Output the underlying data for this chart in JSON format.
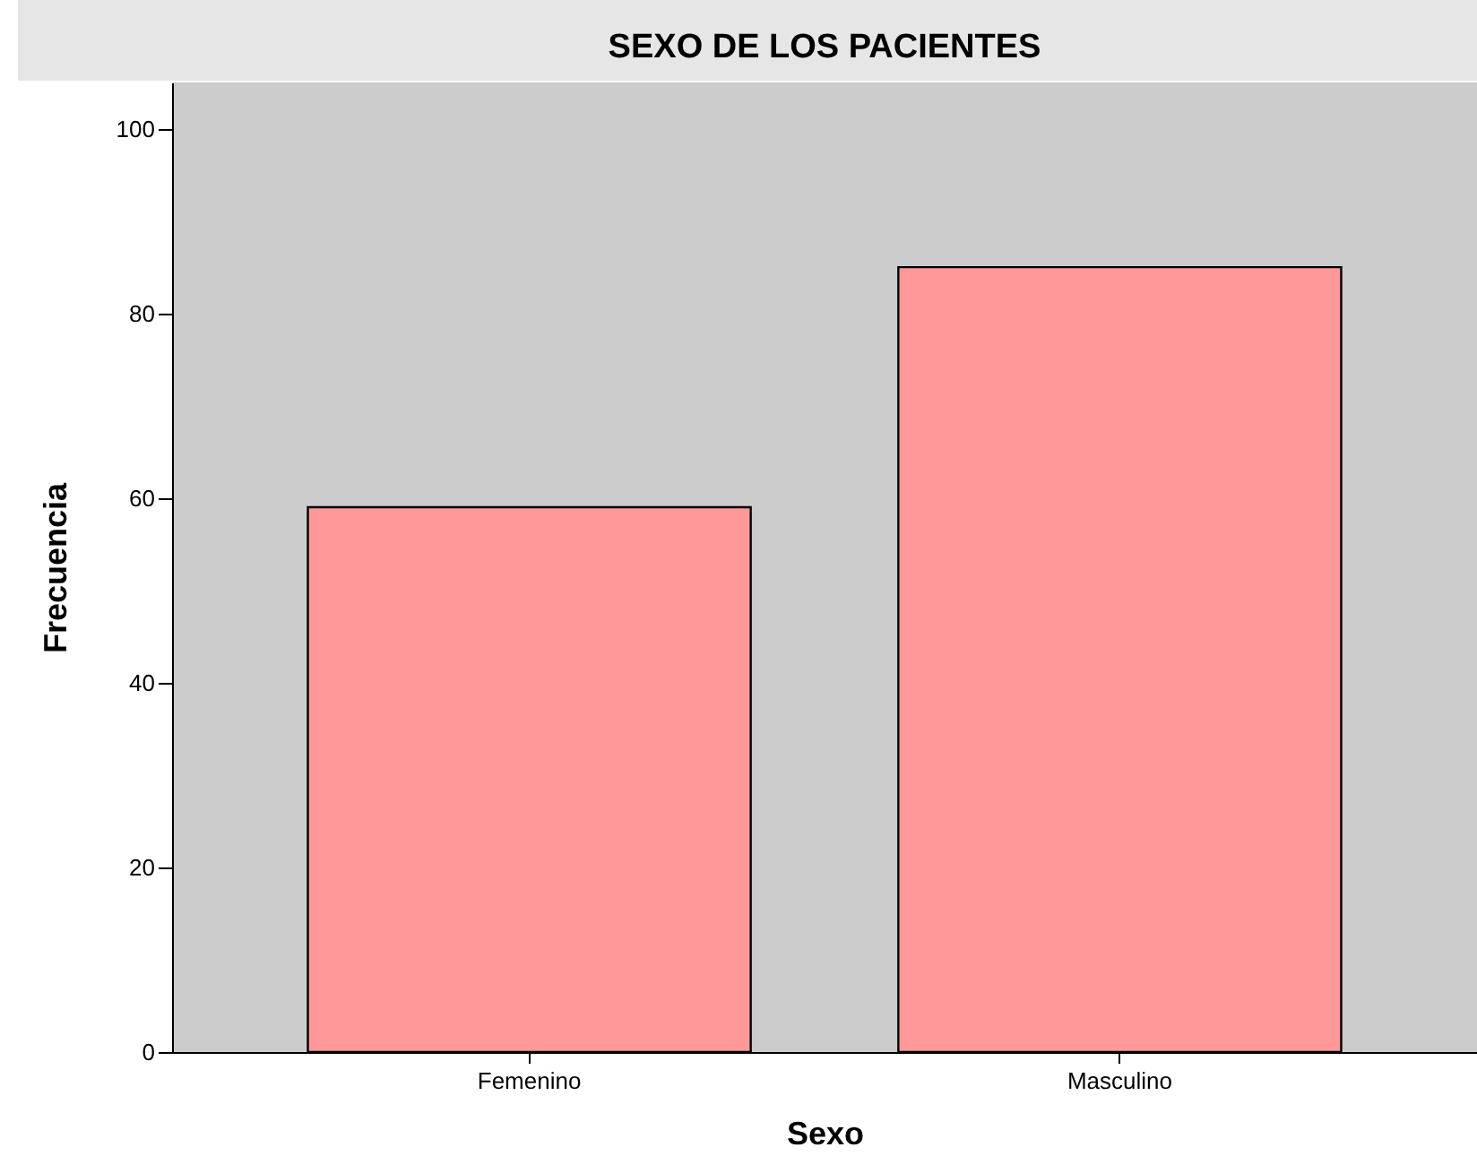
{
  "chart_data": {
    "type": "bar",
    "title": "SEXO DE LOS PACIENTES",
    "xlabel": "Sexo",
    "ylabel": "Frecuencia",
    "categories": [
      "Femenino",
      "Masculino"
    ],
    "values": [
      59,
      85
    ],
    "color": "#ff9999",
    "ylim": [
      0,
      105
    ],
    "yticks": [
      0,
      20,
      40,
      60,
      80,
      100
    ],
    "grid": false,
    "legend": false
  }
}
